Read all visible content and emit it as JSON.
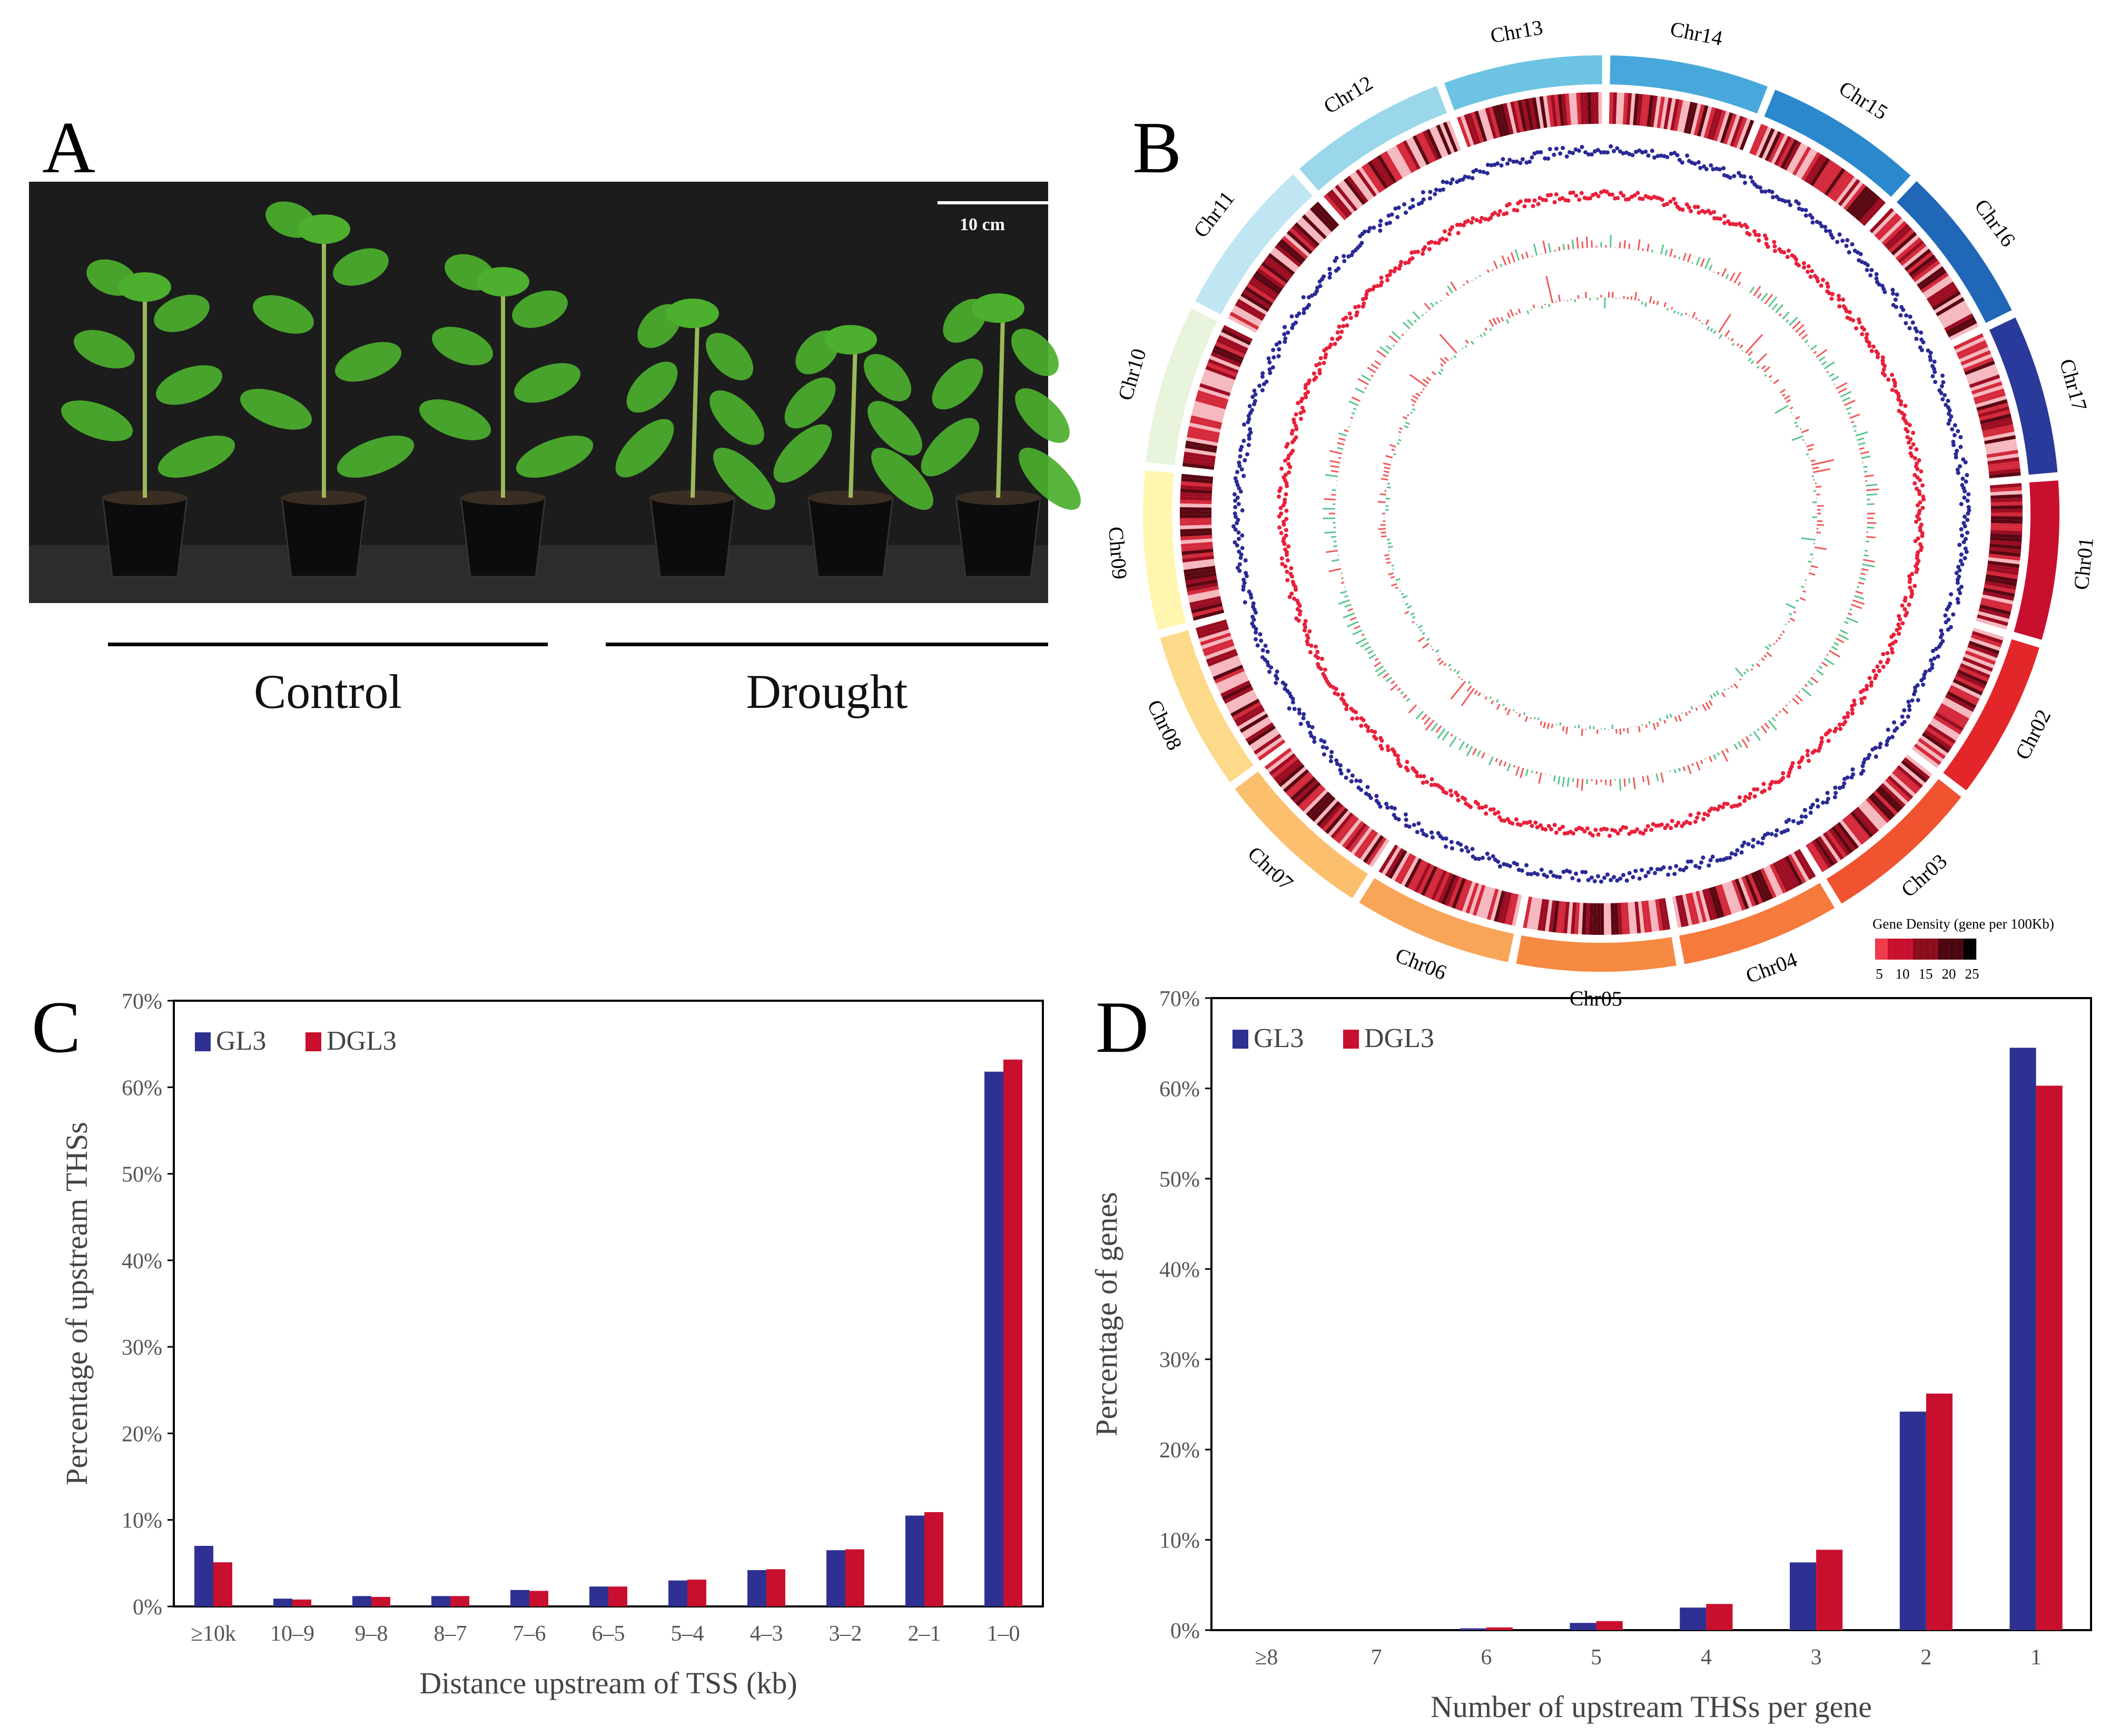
{
  "panel_letters": {
    "a": "A",
    "b": "B",
    "c": "C",
    "d": "D"
  },
  "photo": {
    "scale_bar_label": "10 cm",
    "groups": [
      "Control",
      "Drought"
    ],
    "background_color": "#1f1f1f",
    "leaf_color": "#4caf2e"
  },
  "circos": {
    "chromosomes": [
      {
        "name": "Chr01",
        "color": "#c8102e"
      },
      {
        "name": "Chr02",
        "color": "#e3262a"
      },
      {
        "name": "Chr03",
        "color": "#f0532f"
      },
      {
        "name": "Chr04",
        "color": "#f57a3c"
      },
      {
        "name": "Chr05",
        "color": "#f78a43"
      },
      {
        "name": "Chr06",
        "color": "#f9a558"
      },
      {
        "name": "Chr07",
        "color": "#fbbf6e"
      },
      {
        "name": "Chr08",
        "color": "#fdd98a"
      },
      {
        "name": "Chr09",
        "color": "#fff6b0"
      },
      {
        "name": "Chr10",
        "color": "#e8f4dc"
      },
      {
        "name": "Chr11",
        "color": "#bfe6f2"
      },
      {
        "name": "Chr12",
        "color": "#9ad7ea"
      },
      {
        "name": "Chr13",
        "color": "#6cc3e3"
      },
      {
        "name": "Chr14",
        "color": "#48a8db"
      },
      {
        "name": "Chr15",
        "color": "#2c88cc"
      },
      {
        "name": "Chr16",
        "color": "#2167b8"
      },
      {
        "name": "Chr17",
        "color": "#2a3a9a"
      }
    ],
    "legend_title": "Gene Density (gene per 100Kb)",
    "legend_ticks": [
      "5",
      "10",
      "15",
      "20",
      "25"
    ],
    "legend_colors": [
      "#f03a4a",
      "#c8102e",
      "#8a0d1c",
      "#4a060e",
      "#000000"
    ],
    "track_colors": {
      "blue": "#2a2a96",
      "red": "#e8213b",
      "up": "#ef5a5a",
      "down": "#5cc48e"
    }
  },
  "chart_data": [
    {
      "type": "bar",
      "panel": "C",
      "categories": [
        "≥10k",
        "10–9",
        "9–8",
        "8–7",
        "7–6",
        "6–5",
        "5–4",
        "4–3",
        "3–2",
        "2–1",
        "1–0"
      ],
      "series": [
        {
          "name": "GL3",
          "color": "#2e3192",
          "values": [
            7.0,
            0.9,
            1.2,
            1.2,
            1.9,
            2.3,
            3.0,
            4.2,
            6.5,
            10.5,
            61.8
          ]
        },
        {
          "name": "DGL3",
          "color": "#c8102e",
          "values": [
            5.1,
            0.8,
            1.1,
            1.2,
            1.8,
            2.3,
            3.1,
            4.3,
            6.6,
            10.9,
            63.2
          ]
        }
      ],
      "xlabel": "Distance upstream of TSS (kb)",
      "ylabel": "Percentage of upstream THSs",
      "ylim": [
        0,
        70
      ],
      "yticks": [
        "0%",
        "10%",
        "20%",
        "30%",
        "40%",
        "50%",
        "60%",
        "70%"
      ],
      "legend_position": "top-left",
      "grid": false
    },
    {
      "type": "bar",
      "panel": "D",
      "categories": [
        "≥8",
        "7",
        "6",
        "5",
        "4",
        "3",
        "2",
        "1"
      ],
      "series": [
        {
          "name": "GL3",
          "color": "#2e3192",
          "values": [
            0.0,
            0.0,
            0.2,
            0.8,
            2.5,
            7.5,
            24.2,
            64.5
          ]
        },
        {
          "name": "DGL3",
          "color": "#c8102e",
          "values": [
            0.0,
            0.0,
            0.3,
            1.0,
            2.9,
            8.9,
            26.2,
            60.3
          ]
        }
      ],
      "xlabel": "Number of upstream THSs per gene",
      "ylabel": "Percentage of genes",
      "ylim": [
        0,
        70
      ],
      "yticks": [
        "0%",
        "10%",
        "20%",
        "30%",
        "40%",
        "50%",
        "60%",
        "70%"
      ],
      "legend_position": "top-left",
      "grid": false
    }
  ]
}
